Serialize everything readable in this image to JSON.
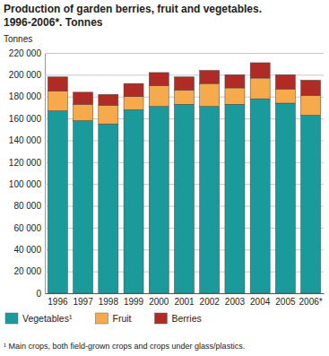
{
  "chart_data": {
    "type": "bar",
    "stacked": true,
    "title": "Production of garden berries, fruit and vegetables.",
    "subtitle": "1996-2006*. Tonnes",
    "y_label": "Tonnes",
    "annotation": "¹ Main crops, both field-grown crops and crops under glass/plastics.",
    "categories": [
      "1996",
      "1997",
      "1998",
      "1999",
      "2000",
      "2001",
      "2002",
      "2003",
      "2004",
      "2005",
      "2006*"
    ],
    "series": [
      {
        "name": "Vegetables¹",
        "color": "#1b9a9c",
        "values": [
          167000,
          158000,
          155000,
          168000,
          171000,
          173000,
          171000,
          173000,
          178000,
          174000,
          163000
        ]
      },
      {
        "name": "Fruit",
        "color": "#f6aa4c",
        "values": [
          18000,
          15000,
          17000,
          12000,
          19000,
          13000,
          21000,
          15000,
          19000,
          13000,
          18000
        ]
      },
      {
        "name": "Berries",
        "color": "#b02b25",
        "values": [
          13000,
          11000,
          10000,
          12000,
          12000,
          12000,
          12000,
          12000,
          14000,
          13000,
          14000
        ]
      }
    ],
    "ylim": [
      0,
      220000
    ],
    "yticks": [
      0,
      {
        "value": 20000,
        "label": "20 000"
      },
      {
        "value": 40000,
        "label": "40 000"
      },
      {
        "value": 60000,
        "label": "60 000"
      },
      {
        "value": 80000,
        "label": "80 000"
      },
      {
        "value": 100000,
        "label": "100 000"
      },
      {
        "value": 120000,
        "label": "120 000"
      },
      {
        "value": 140000,
        "label": "140 000"
      },
      {
        "value": 160000,
        "label": "160 000"
      },
      {
        "value": 180000,
        "label": "180 000"
      },
      {
        "value": 200000,
        "label": "200 000"
      },
      {
        "value": 220000,
        "label": "220 000"
      }
    ],
    "grid": true,
    "legend": "bottom"
  }
}
